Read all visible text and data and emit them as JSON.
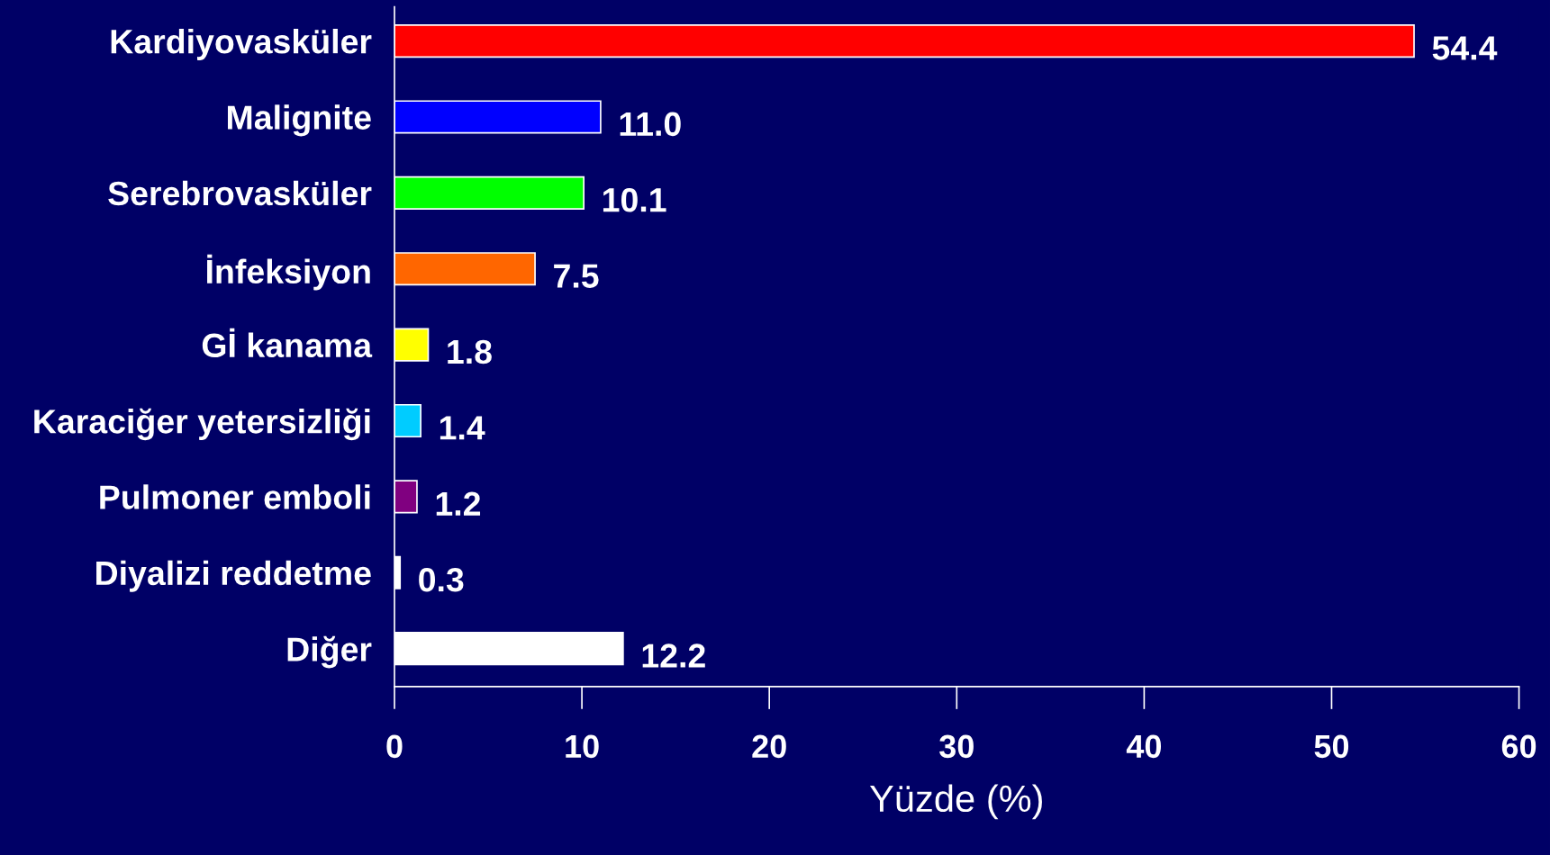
{
  "chart_data": {
    "type": "bar",
    "orientation": "horizontal",
    "xlabel": "Yüzde (%)",
    "categories": [
      "Kardiyovasküler",
      "Malignite",
      "Serebrovasküler",
      "İnfeksiyon",
      "Gİ kanama",
      "Karaciğer yetersizliği",
      "Pulmoner emboli",
      "Diyalizi reddetme",
      "Diğer"
    ],
    "values": [
      54.4,
      11.0,
      10.1,
      7.5,
      1.8,
      1.4,
      1.2,
      0.3,
      12.2
    ],
    "value_labels": [
      "54.4",
      "11.0",
      "10.1",
      "7.5",
      "1.8",
      "1.4",
      "1.2",
      "0.3",
      "12.2"
    ],
    "colors": [
      "#ff0000",
      "#0000ff",
      "#00ff00",
      "#ff6600",
      "#ffff00",
      "#00ccff",
      "#800080",
      "#ffffff",
      "#ffffff"
    ],
    "xlim": [
      0,
      60
    ],
    "xticks": [
      0,
      10,
      20,
      30,
      40,
      50,
      60
    ],
    "grid": false,
    "legend": false
  }
}
